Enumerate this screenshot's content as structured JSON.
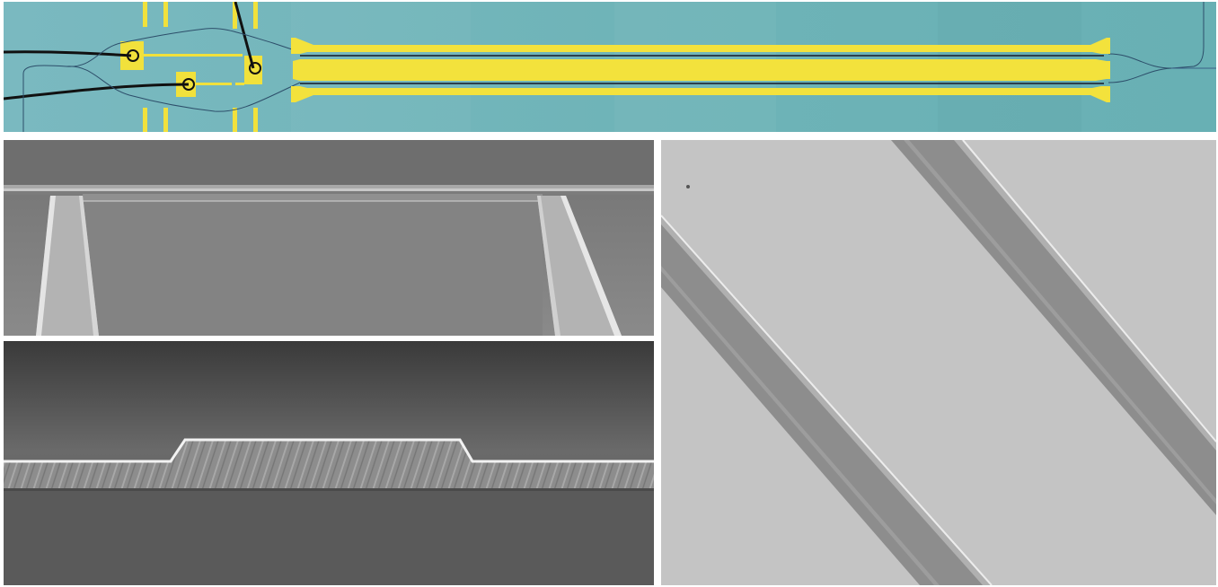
{
  "figure": {
    "panels": [
      {
        "id": "optical-micrograph",
        "kind": "optical micrograph with gold electrodes"
      },
      {
        "id": "sem-electrode-top",
        "kind": "SEM image"
      },
      {
        "id": "sem-cross-section",
        "kind": "SEM image"
      },
      {
        "id": "sem-waveguide-angled",
        "kind": "SEM image"
      }
    ],
    "colors": {
      "optical_background": "#6fb3b5",
      "gold_electrode": "#f2e23a",
      "sem_gray": "#8e8e8e",
      "separator": "#ffffff"
    }
  }
}
